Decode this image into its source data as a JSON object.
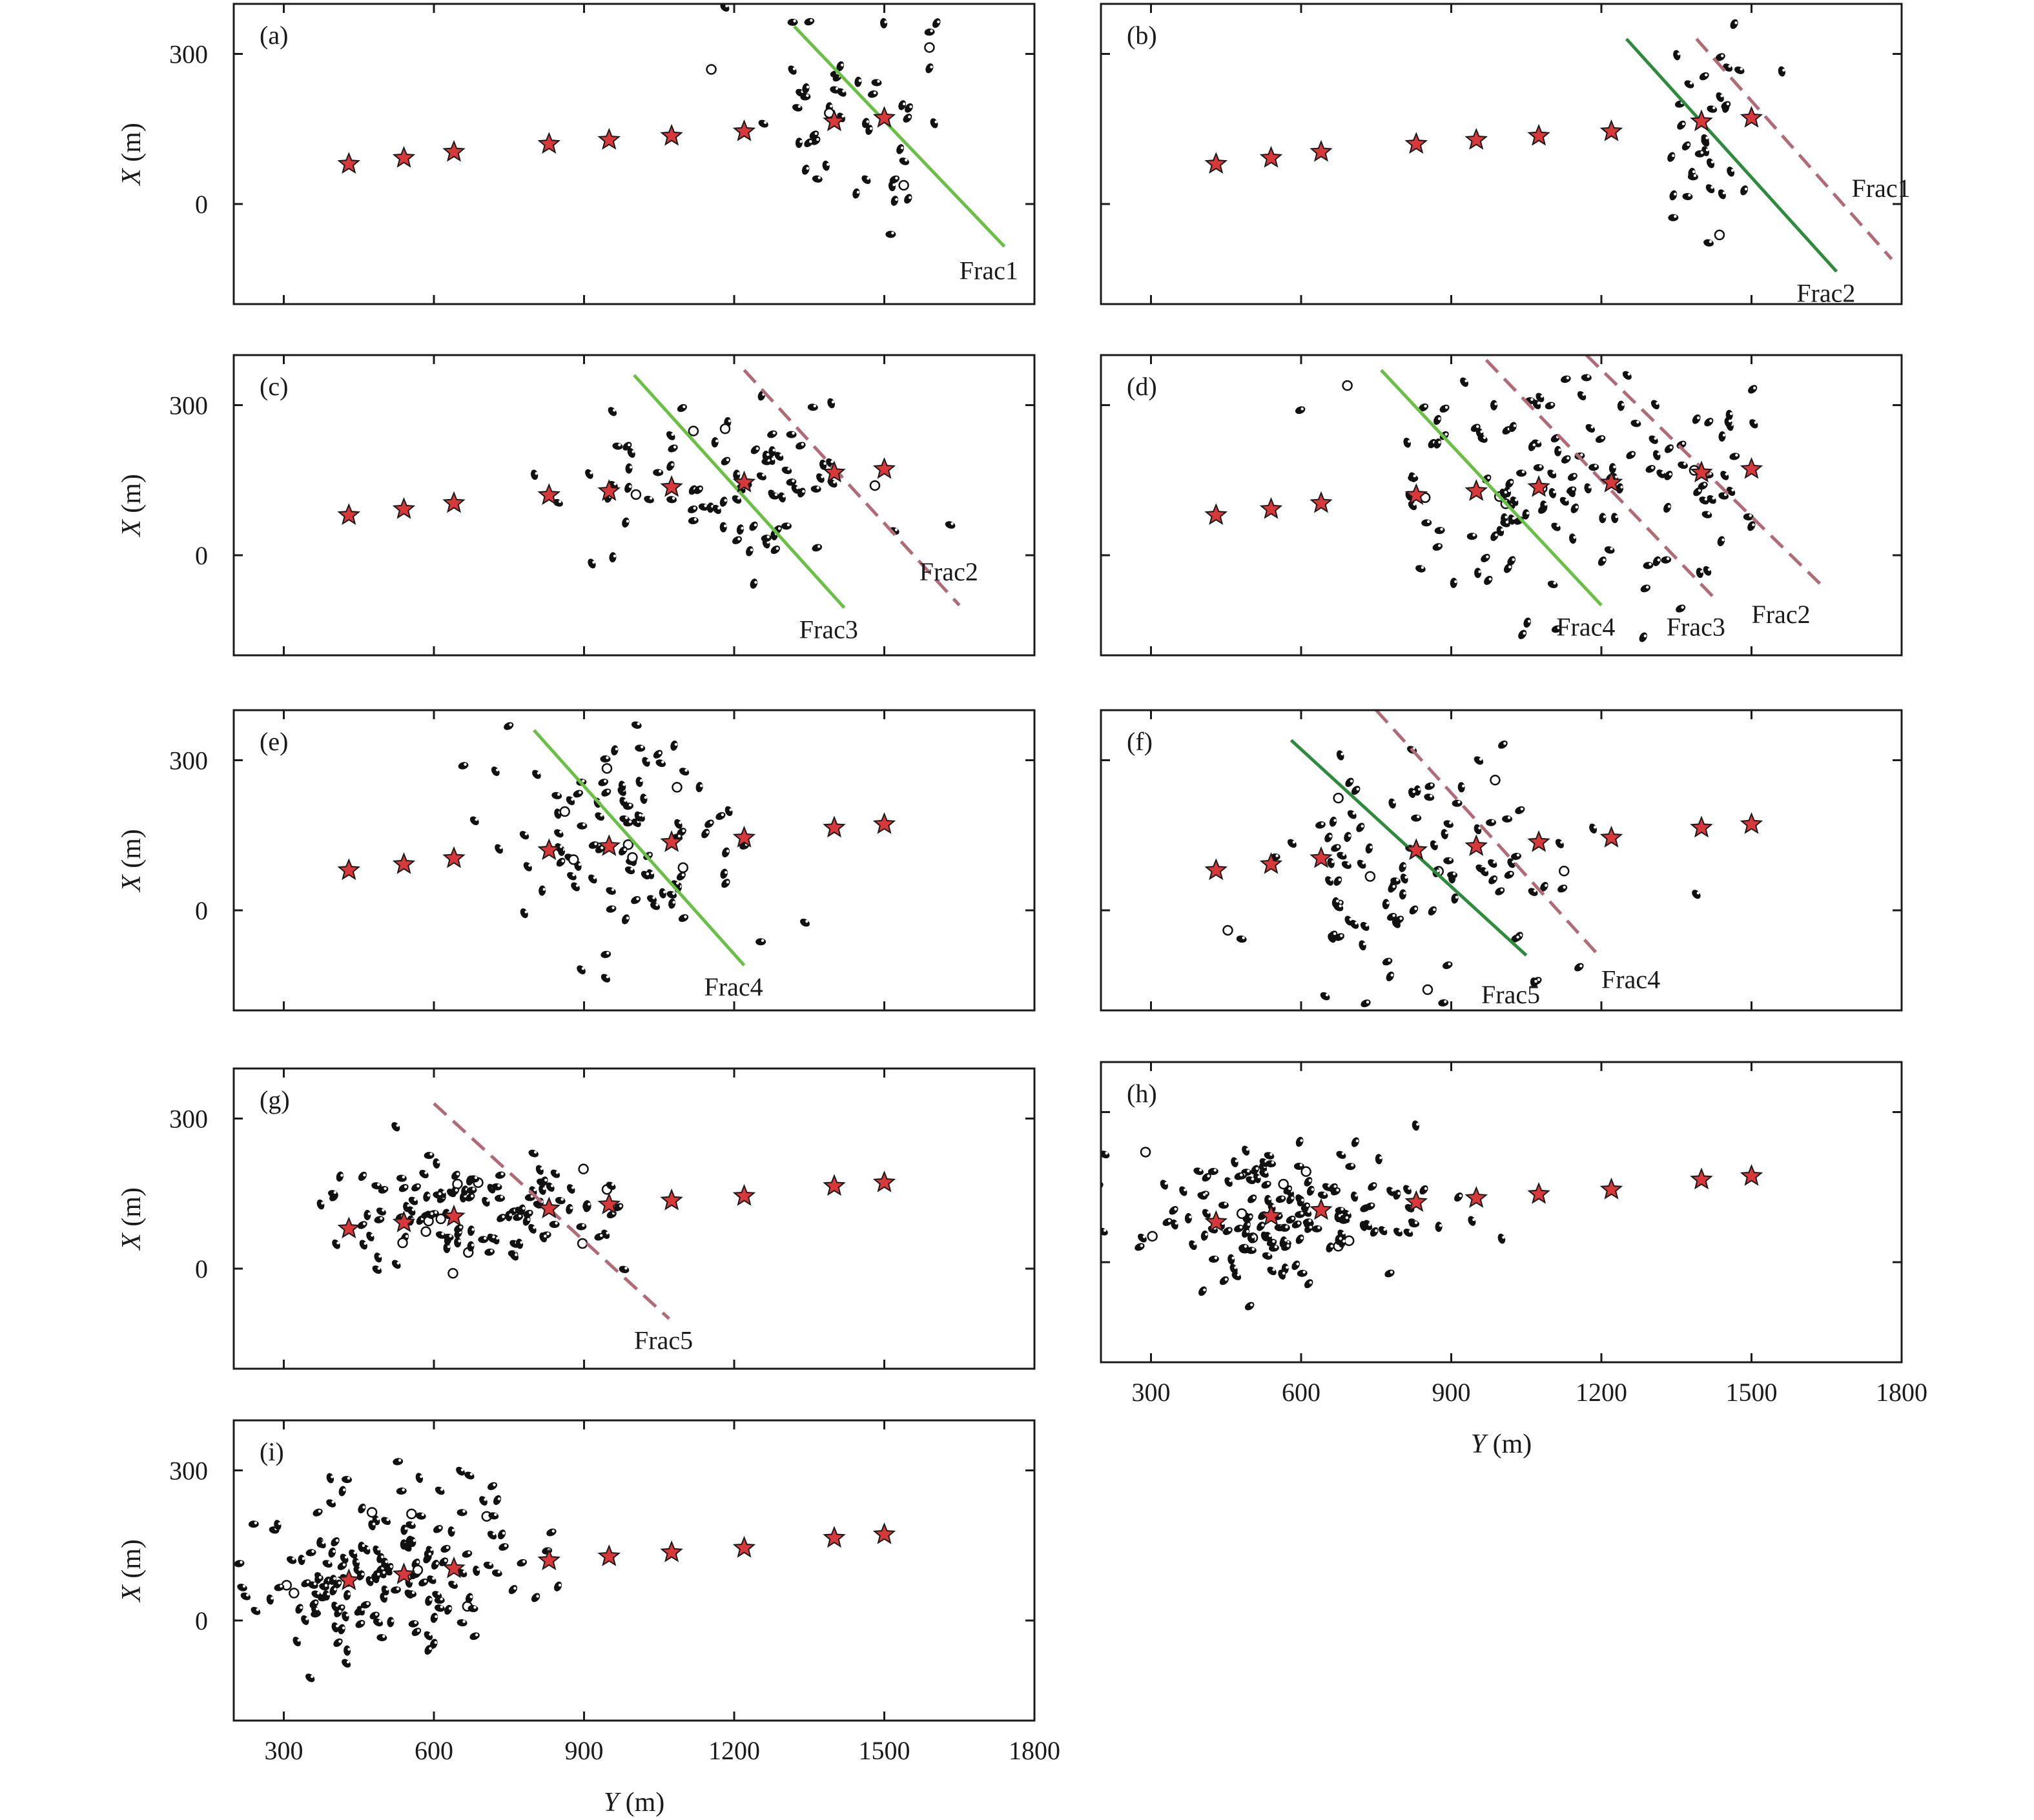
{
  "figure": {
    "x_axis_label_italic": "Y",
    "x_axis_label_unit": " (m)",
    "y_axis_label_italic": "X",
    "y_axis_label_unit": " (m)"
  },
  "colors": {
    "axes": "#1a1a1a",
    "star_fill": "#d9383a",
    "star_edge": "#1a1a1a",
    "beachball_dark": "#111111",
    "fracture_green_light": "#6abf45",
    "fracture_green_dark": "#2e8b3e",
    "fracture_dashed": "#b06a78"
  },
  "chart_data": [
    {
      "type": "scatter",
      "panel": "(a)",
      "xlim": [
        200,
        1800
      ],
      "ylim": [
        -200,
        400
      ],
      "xticks": [
        300,
        600,
        900,
        1200,
        1500,
        1800
      ],
      "yticks": [
        "300",
        "0"
      ],
      "show_xtick_labels": false,
      "stages": [
        [
          430,
          80
        ],
        [
          540,
          92
        ],
        [
          640,
          104
        ],
        [
          830,
          120
        ],
        [
          950,
          128
        ],
        [
          1075,
          136
        ],
        [
          1220,
          145
        ],
        [
          1400,
          165
        ],
        [
          1500,
          172
        ]
      ],
      "event_clusters": [
        {
          "cx": 1450,
          "cy": 200,
          "sx": 90,
          "sy": 120,
          "n": 55
        }
      ],
      "fractures": [
        {
          "label": "Frac1",
          "style": "solid-light",
          "x1": 1320,
          "y1": 355,
          "x2": 1740,
          "y2": -85,
          "label_x": 1650,
          "label_y": -135
        }
      ]
    },
    {
      "type": "scatter",
      "panel": "(b)",
      "xlim": [
        200,
        1800
      ],
      "ylim": [
        -200,
        400
      ],
      "xticks": [
        300,
        600,
        900,
        1200,
        1500,
        1800
      ],
      "yticks": [
        "300",
        "0"
      ],
      "show_xtick_labels": false,
      "stages": [
        [
          430,
          80
        ],
        [
          540,
          92
        ],
        [
          640,
          104
        ],
        [
          830,
          120
        ],
        [
          950,
          128
        ],
        [
          1075,
          136
        ],
        [
          1220,
          145
        ],
        [
          1400,
          165
        ],
        [
          1500,
          172
        ]
      ],
      "event_clusters": [
        {
          "cx": 1420,
          "cy": 150,
          "sx": 60,
          "sy": 120,
          "n": 32
        }
      ],
      "fractures": [
        {
          "label": "Frac2",
          "style": "solid-dark",
          "x1": 1250,
          "y1": 330,
          "x2": 1670,
          "y2": -135,
          "label_x": 1590,
          "label_y": -180
        },
        {
          "label": "Frac1",
          "style": "dashed",
          "x1": 1390,
          "y1": 330,
          "x2": 1780,
          "y2": -110,
          "label_x": 1700,
          "label_y": 30
        }
      ]
    },
    {
      "type": "scatter",
      "panel": "(c)",
      "xlim": [
        200,
        1800
      ],
      "ylim": [
        -200,
        400
      ],
      "xticks": [
        300,
        600,
        900,
        1200,
        1500,
        1800
      ],
      "yticks": [
        "300",
        "0"
      ],
      "show_xtick_labels": false,
      "stages": [
        [
          430,
          80
        ],
        [
          540,
          92
        ],
        [
          640,
          104
        ],
        [
          830,
          120
        ],
        [
          950,
          128
        ],
        [
          1075,
          136
        ],
        [
          1220,
          145
        ],
        [
          1400,
          165
        ],
        [
          1500,
          172
        ]
      ],
      "event_clusters": [
        {
          "cx": 1200,
          "cy": 140,
          "sx": 170,
          "sy": 80,
          "n": 80
        }
      ],
      "fractures": [
        {
          "label": "Frac3",
          "style": "solid-light",
          "x1": 1000,
          "y1": 360,
          "x2": 1420,
          "y2": -105,
          "label_x": 1330,
          "label_y": -150
        },
        {
          "label": "Frac2",
          "style": "dashed",
          "x1": 1220,
          "y1": 370,
          "x2": 1650,
          "y2": -100,
          "label_x": 1570,
          "label_y": -35
        }
      ]
    },
    {
      "type": "scatter",
      "panel": "(d)",
      "xlim": [
        200,
        1800
      ],
      "ylim": [
        -200,
        400
      ],
      "xticks": [
        300,
        600,
        900,
        1200,
        1500,
        1800
      ],
      "yticks": [
        "300",
        "0"
      ],
      "show_xtick_labels": false,
      "stages": [
        [
          430,
          80
        ],
        [
          540,
          92
        ],
        [
          640,
          104
        ],
        [
          830,
          120
        ],
        [
          950,
          128
        ],
        [
          1075,
          136
        ],
        [
          1220,
          145
        ],
        [
          1400,
          165
        ],
        [
          1500,
          172
        ]
      ],
      "event_clusters": [
        {
          "cx": 1050,
          "cy": 150,
          "sx": 160,
          "sy": 130,
          "n": 110
        },
        {
          "cx": 1400,
          "cy": 200,
          "sx": 90,
          "sy": 100,
          "n": 30
        }
      ],
      "fractures": [
        {
          "label": "Frac4",
          "style": "solid-light",
          "x1": 760,
          "y1": 370,
          "x2": 1200,
          "y2": -100,
          "label_x": 1110,
          "label_y": -145
        },
        {
          "label": "Frac3",
          "style": "dashed",
          "x1": 970,
          "y1": 390,
          "x2": 1430,
          "y2": -90,
          "label_x": 1330,
          "label_y": -145
        },
        {
          "label": "Frac2",
          "style": "dashed",
          "x1": 1170,
          "y1": 400,
          "x2": 1640,
          "y2": -60,
          "label_x": 1500,
          "label_y": -120
        }
      ]
    },
    {
      "type": "scatter",
      "panel": "(e)",
      "xlim": [
        200,
        1800
      ],
      "ylim": [
        -200,
        400
      ],
      "xticks": [
        300,
        600,
        900,
        1200,
        1500,
        1800
      ],
      "yticks": [
        "300",
        "0"
      ],
      "show_xtick_labels": false,
      "stages": [
        [
          430,
          80
        ],
        [
          540,
          92
        ],
        [
          640,
          104
        ],
        [
          830,
          120
        ],
        [
          950,
          128
        ],
        [
          1075,
          136
        ],
        [
          1220,
          145
        ],
        [
          1400,
          165
        ],
        [
          1500,
          172
        ]
      ],
      "event_clusters": [
        {
          "cx": 980,
          "cy": 160,
          "sx": 110,
          "sy": 110,
          "n": 95
        }
      ],
      "fractures": [
        {
          "label": "Frac4",
          "style": "solid-light",
          "x1": 800,
          "y1": 360,
          "x2": 1220,
          "y2": -110,
          "label_x": 1140,
          "label_y": -155
        }
      ]
    },
    {
      "type": "scatter",
      "panel": "(f)",
      "xlim": [
        200,
        1800
      ],
      "ylim": [
        -200,
        400
      ],
      "xticks": [
        300,
        600,
        900,
        1200,
        1500,
        1800
      ],
      "yticks": [
        "300",
        "0"
      ],
      "show_xtick_labels": false,
      "stages": [
        [
          430,
          80
        ],
        [
          540,
          92
        ],
        [
          640,
          104
        ],
        [
          830,
          120
        ],
        [
          950,
          128
        ],
        [
          1075,
          136
        ],
        [
          1220,
          145
        ],
        [
          1400,
          165
        ],
        [
          1500,
          172
        ]
      ],
      "event_clusters": [
        {
          "cx": 850,
          "cy": 100,
          "sx": 170,
          "sy": 120,
          "n": 100
        }
      ],
      "fractures": [
        {
          "label": "Frac5",
          "style": "solid-dark",
          "x1": 580,
          "y1": 340,
          "x2": 1050,
          "y2": -90,
          "label_x": 960,
          "label_y": -170
        },
        {
          "label": "Frac4",
          "style": "dashed",
          "x1": 750,
          "y1": 400,
          "x2": 1190,
          "y2": -85,
          "label_x": 1200,
          "label_y": -140
        }
      ]
    },
    {
      "type": "scatter",
      "panel": "(g)",
      "xlim": [
        200,
        1800
      ],
      "ylim": [
        -200,
        400
      ],
      "xticks": [
        300,
        600,
        900,
        1200,
        1500,
        1800
      ],
      "yticks": [
        "300",
        "0"
      ],
      "show_xtick_labels": false,
      "stages": [
        [
          430,
          80
        ],
        [
          540,
          92
        ],
        [
          640,
          104
        ],
        [
          830,
          120
        ],
        [
          950,
          128
        ],
        [
          1075,
          136
        ],
        [
          1220,
          145
        ],
        [
          1400,
          165
        ],
        [
          1500,
          172
        ]
      ],
      "event_clusters": [
        {
          "cx": 680,
          "cy": 110,
          "sx": 150,
          "sy": 60,
          "n": 120
        }
      ],
      "fractures": [
        {
          "label": "Frac5",
          "style": "dashed",
          "x1": 600,
          "y1": 330,
          "x2": 1070,
          "y2": -100,
          "label_x": 1000,
          "label_y": -145
        }
      ]
    },
    {
      "type": "scatter",
      "panel": "(h)",
      "xlim": [
        200,
        1800
      ],
      "ylim": [
        -200,
        400
      ],
      "xticks": [
        300,
        600,
        900,
        1200,
        1500,
        1800
      ],
      "yticks": [
        "300",
        "0"
      ],
      "show_xtick_labels": true,
      "stages": [
        [
          430,
          80
        ],
        [
          540,
          92
        ],
        [
          640,
          104
        ],
        [
          830,
          120
        ],
        [
          950,
          128
        ],
        [
          1075,
          136
        ],
        [
          1220,
          145
        ],
        [
          1400,
          165
        ],
        [
          1500,
          172
        ]
      ],
      "event_clusters": [
        {
          "cx": 560,
          "cy": 100,
          "sx": 170,
          "sy": 70,
          "n": 150
        }
      ],
      "fractures": []
    },
    {
      "type": "scatter",
      "panel": "(i)",
      "xlim": [
        200,
        1800
      ],
      "ylim": [
        -200,
        400
      ],
      "xticks": [
        300,
        600,
        900,
        1200,
        1500,
        1800
      ],
      "yticks": [
        "300",
        "0"
      ],
      "show_xtick_labels": true,
      "stages": [
        [
          430,
          80
        ],
        [
          540,
          92
        ],
        [
          640,
          104
        ],
        [
          830,
          120
        ],
        [
          950,
          128
        ],
        [
          1075,
          136
        ],
        [
          1220,
          145
        ],
        [
          1400,
          165
        ],
        [
          1500,
          172
        ]
      ],
      "event_clusters": [
        {
          "cx": 490,
          "cy": 80,
          "sx": 130,
          "sy": 80,
          "n": 160
        }
      ],
      "fractures": []
    }
  ]
}
